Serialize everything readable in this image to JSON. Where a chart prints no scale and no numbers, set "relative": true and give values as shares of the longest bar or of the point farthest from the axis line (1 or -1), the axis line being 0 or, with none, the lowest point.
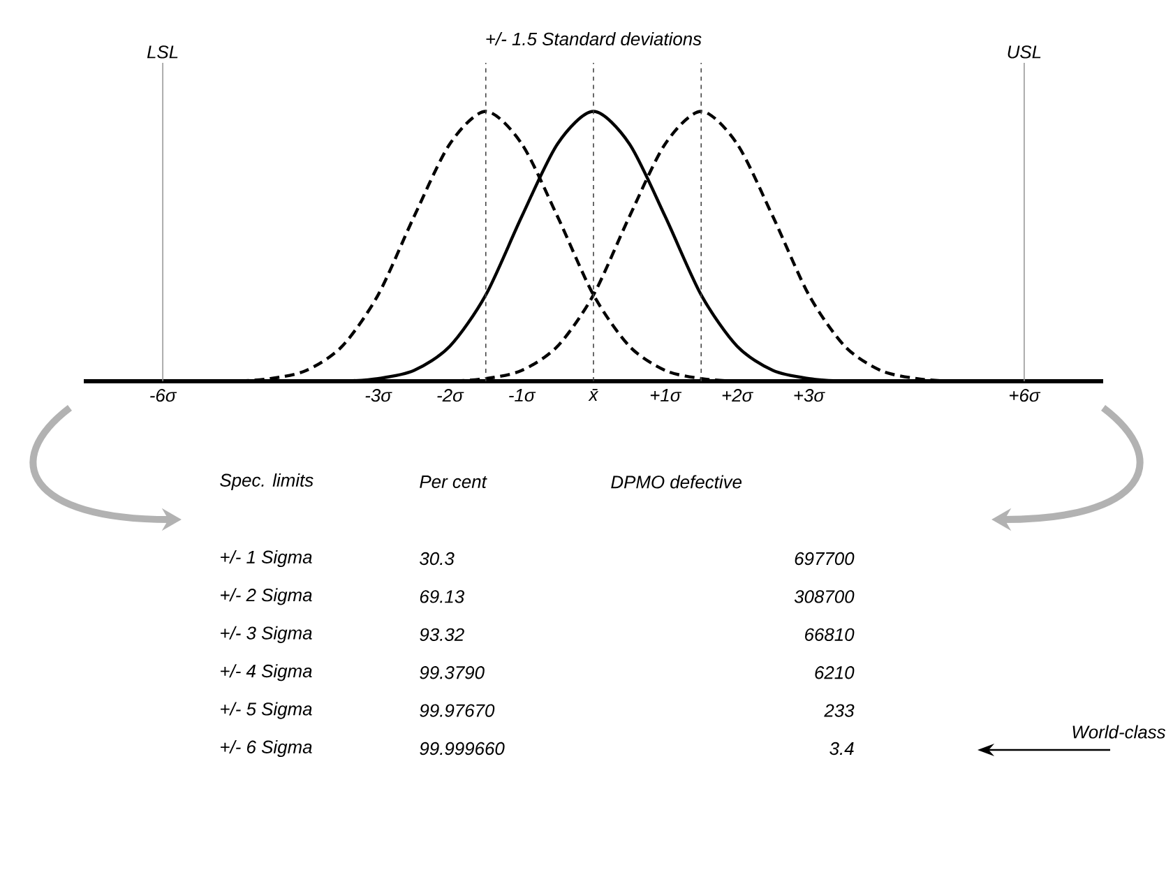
{
  "chart_data": {
    "type": "line",
    "title": "+/- 1.5 Standard deviations",
    "relative": true,
    "xlim": [
      -7.1,
      7.1
    ],
    "xticks": [
      {
        "value": -6,
        "label": "-6σ"
      },
      {
        "value": -3,
        "label": "-3σ"
      },
      {
        "value": -2,
        "label": "-2σ"
      },
      {
        "value": -1,
        "label": "-1σ"
      },
      {
        "value": 0,
        "label": "x̄"
      },
      {
        "value": 1,
        "label": "+1σ"
      },
      {
        "value": 2,
        "label": "+2σ"
      },
      {
        "value": 3,
        "label": "+3σ"
      },
      {
        "value": 6,
        "label": "+6σ"
      }
    ],
    "series": [
      {
        "color": "#000000",
        "line_style": "dashed",
        "x": [
          -6,
          -5.5,
          -5,
          -4.5,
          -4,
          -3.5,
          -3,
          -2.5,
          -2,
          -1.5,
          -1,
          -0.5,
          0,
          0.5,
          1,
          1.5,
          2,
          2.5,
          3
        ],
        "values": [
          0,
          0,
          0,
          0.01,
          0.04,
          0.13,
          0.32,
          0.61,
          0.88,
          1,
          0.88,
          0.61,
          0.32,
          0.13,
          0.04,
          0.01,
          0,
          0,
          0
        ]
      },
      {
        "color": "#000000",
        "line_style": "dashed",
        "x": [
          -3,
          -2.5,
          -2,
          -1.5,
          -1,
          -0.5,
          0,
          0.5,
          1,
          1.5,
          2,
          2.5,
          3,
          3.5,
          4,
          4.5,
          5,
          5.5,
          6
        ],
        "values": [
          0,
          0,
          0,
          0.01,
          0.04,
          0.13,
          0.32,
          0.61,
          0.88,
          1,
          0.88,
          0.61,
          0.32,
          0.13,
          0.04,
          0.01,
          0,
          0,
          0
        ]
      },
      {
        "color": "#000000",
        "line_style": "solid",
        "x": [
          -6,
          -5.5,
          -5,
          -4.5,
          -4,
          -3.5,
          -3,
          -2.5,
          -2,
          -1.5,
          -1,
          -0.5,
          0,
          0.5,
          1,
          1.5,
          2,
          2.5,
          3,
          3.5,
          4,
          4.5,
          5,
          5.5,
          6
        ],
        "values": [
          0,
          0,
          0,
          0,
          0,
          0,
          0.01,
          0.04,
          0.13,
          0.32,
          0.61,
          0.88,
          1,
          0.88,
          0.61,
          0.32,
          0.13,
          0.04,
          0.01,
          0,
          0,
          0,
          0,
          0,
          0
        ]
      }
    ],
    "ref_lines": [
      {
        "axis": "x",
        "value": -6,
        "label": "LSL",
        "color": "#999999",
        "line_style": "solid"
      },
      {
        "axis": "x",
        "value": 6,
        "label": "USL",
        "color": "#999999",
        "line_style": "solid"
      },
      {
        "axis": "x",
        "value": -1.5,
        "color": "#444444",
        "line_style": "dashed"
      },
      {
        "axis": "x",
        "value": 0,
        "color": "#444444",
        "line_style": "dashed"
      },
      {
        "axis": "x",
        "value": 1.5,
        "color": "#444444",
        "line_style": "dashed"
      }
    ],
    "annotations": [
      "Spec. limits",
      "Per cent",
      "DPMO defective",
      "+/- 1 Sigma",
      "30.3",
      "697700",
      "+/- 2 Sigma",
      "69.13",
      "308700",
      "+/- 3 Sigma",
      "93.32",
      "66810",
      "+/- 4 Sigma",
      "99.3790",
      "6210",
      "+/- 5 Sigma",
      "99.97670",
      "233",
      "+/- 6 Sigma",
      "99.999660",
      "3.4",
      "World-class"
    ]
  }
}
